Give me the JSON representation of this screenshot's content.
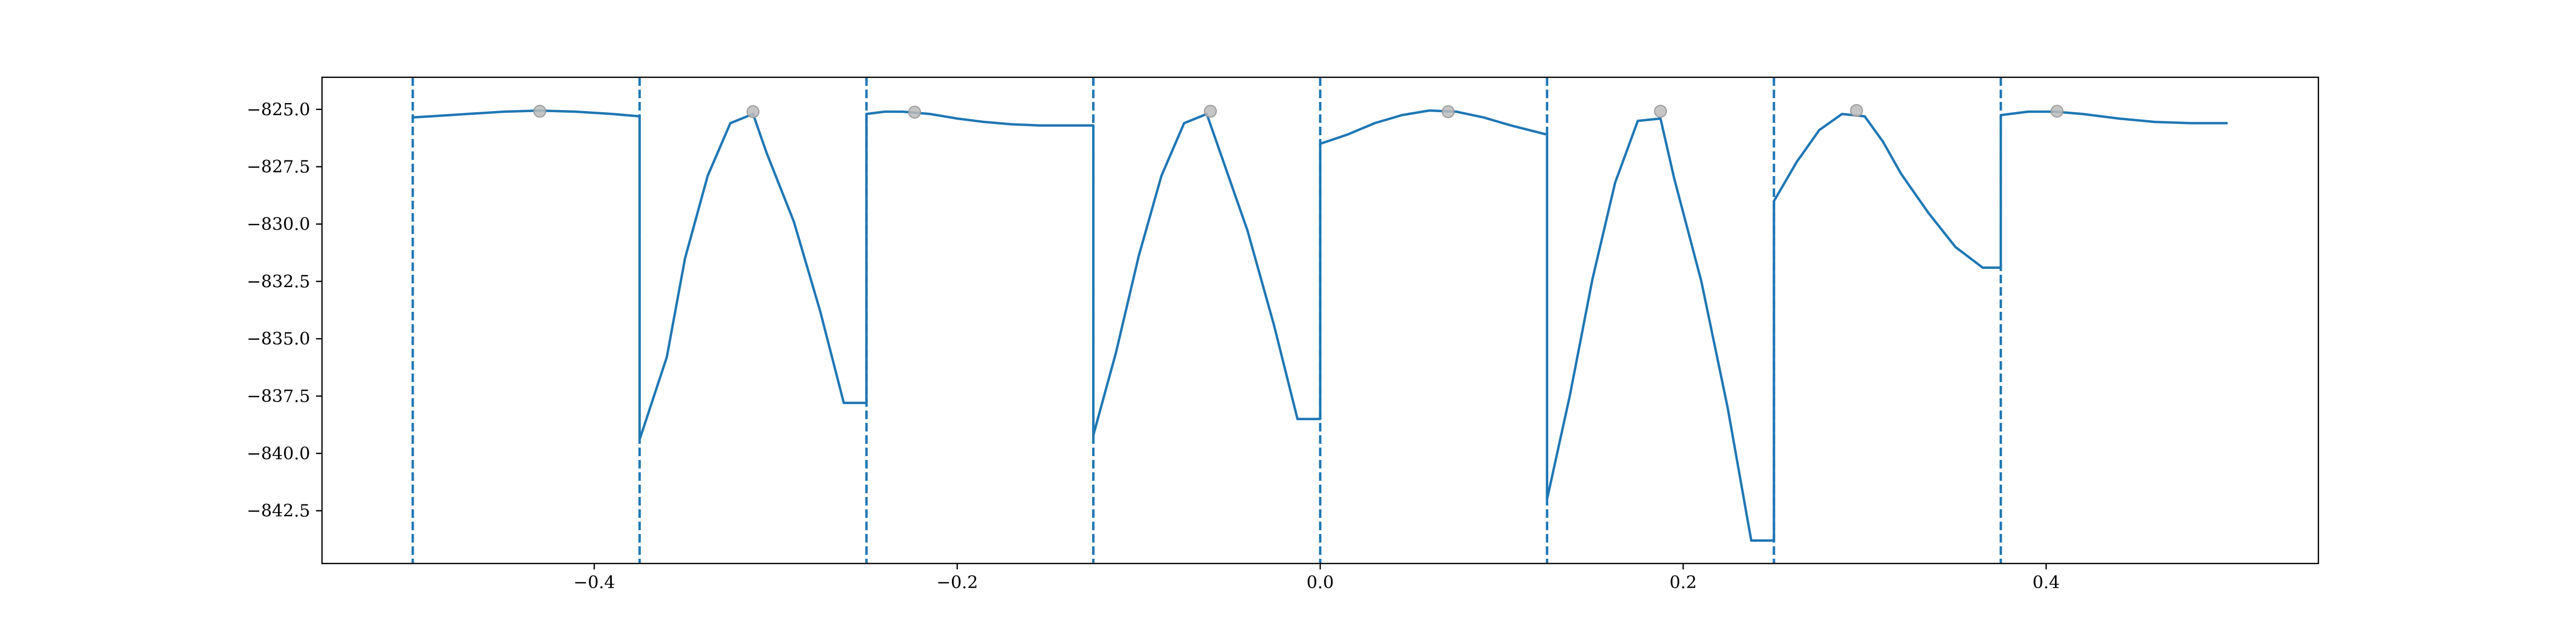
{
  "chart_data": {
    "type": "line",
    "title": "",
    "xlabel": "",
    "ylabel": "",
    "xlim": [
      -0.55,
      0.55
    ],
    "ylim": [
      -844.8,
      -823.6
    ],
    "x_ticks": [
      {
        "value": -0.4,
        "label": "−0.4"
      },
      {
        "value": -0.2,
        "label": "−0.2"
      },
      {
        "value": 0.0,
        "label": "0.0"
      },
      {
        "value": 0.2,
        "label": "0.2"
      },
      {
        "value": 0.4,
        "label": "0.4"
      }
    ],
    "y_ticks": [
      {
        "value": -825.0,
        "label": "−825.0"
      },
      {
        "value": -827.5,
        "label": "−827.5"
      },
      {
        "value": -830.0,
        "label": "−830.0"
      },
      {
        "value": -832.5,
        "label": "−832.5"
      },
      {
        "value": -835.0,
        "label": "−835.0"
      },
      {
        "value": -837.5,
        "label": "−837.5"
      },
      {
        "value": -840.0,
        "label": "−840.0"
      },
      {
        "value": -842.5,
        "label": "−842.5"
      }
    ],
    "grid": false,
    "line_color": "#1f77b4",
    "marker_color": "#bbbbbb",
    "boundaries": [
      -0.5,
      -0.375,
      -0.25,
      -0.125,
      0.0,
      0.125,
      0.25,
      0.375
    ],
    "series": [
      {
        "x": [
          -0.5,
          -0.49,
          -0.47,
          -0.45,
          -0.43,
          -0.41,
          -0.39,
          -0.375,
          -0.375,
          -0.36,
          -0.35,
          -0.3375,
          -0.325,
          -0.3125,
          -0.305,
          -0.29,
          -0.2755,
          -0.2625,
          -0.25,
          -0.25,
          -0.24,
          -0.23,
          -0.215,
          -0.2,
          -0.185,
          -0.17,
          -0.155,
          -0.14,
          -0.125,
          -0.125,
          -0.1125,
          -0.1,
          -0.0875,
          -0.075,
          -0.0625,
          -0.055,
          -0.04,
          -0.0255,
          -0.0125,
          0.0,
          0.0,
          0.015,
          0.03,
          0.045,
          0.06,
          0.075,
          0.09,
          0.105,
          0.125,
          0.125,
          0.1375,
          0.15,
          0.1625,
          0.175,
          0.1875,
          0.195,
          0.21,
          0.2245,
          0.2375,
          0.25,
          0.25,
          0.2625,
          0.275,
          0.2875,
          0.3,
          0.31,
          0.32,
          0.335,
          0.35,
          0.365,
          0.375,
          0.375,
          0.39,
          0.405,
          0.42,
          0.44,
          0.46,
          0.48,
          0.5
        ],
        "y": [
          -825.35,
          -825.3,
          -825.2,
          -825.1,
          -825.05,
          -825.1,
          -825.2,
          -825.3,
          -839.4,
          -835.8,
          -831.5,
          -827.9,
          -825.6,
          -825.2,
          -826.9,
          -829.9,
          -833.8,
          -837.8,
          -837.8,
          -825.2,
          -825.1,
          -825.1,
          -825.2,
          -825.4,
          -825.55,
          -825.65,
          -825.7,
          -825.7,
          -825.7,
          -839.2,
          -835.6,
          -831.4,
          -827.9,
          -825.6,
          -825.2,
          -826.9,
          -830.3,
          -834.4,
          -838.5,
          -838.5,
          -826.5,
          -826.1,
          -825.6,
          -825.25,
          -825.05,
          -825.1,
          -825.35,
          -825.7,
          -826.1,
          -842.0,
          -837.5,
          -832.4,
          -828.2,
          -825.5,
          -825.4,
          -828.0,
          -832.5,
          -838.0,
          -843.8,
          -843.8,
          -829.0,
          -827.3,
          -825.9,
          -825.2,
          -825.3,
          -826.4,
          -827.8,
          -829.5,
          -831.0,
          -831.9,
          -831.9,
          -825.25,
          -825.1,
          -825.1,
          -825.2,
          -825.4,
          -825.55,
          -825.6,
          -825.6
        ]
      }
    ],
    "markers": [
      {
        "x": -0.43,
        "y": -825.08
      },
      {
        "x": -0.3125,
        "y": -825.1
      },
      {
        "x": -0.2235,
        "y": -825.12
      },
      {
        "x": -0.0605,
        "y": -825.08
      },
      {
        "x": 0.0705,
        "y": -825.1
      },
      {
        "x": 0.1875,
        "y": -825.08
      },
      {
        "x": 0.2955,
        "y": -825.05
      },
      {
        "x": 0.406,
        "y": -825.08
      }
    ]
  }
}
